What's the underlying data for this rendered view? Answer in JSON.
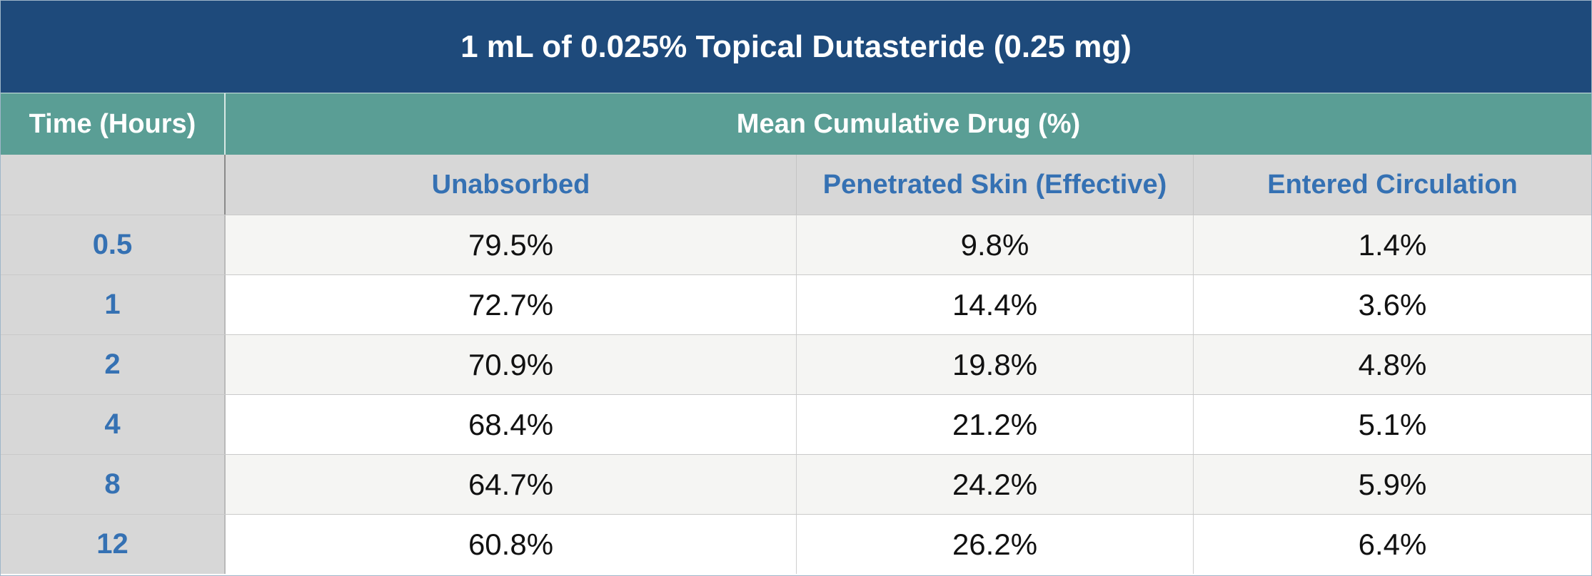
{
  "title": "1 mL of 0.025% Topical Dutasteride (0.25 mg)",
  "headers": {
    "time": "Time (Hours)",
    "group": "Mean Cumulative Drug (%)",
    "columns": [
      "Unabsorbed",
      "Penetrated Skin (Effective)",
      "Entered Circulation"
    ]
  },
  "colors": {
    "title_bg": "#1e4a7b",
    "group_bg": "#5a9e95",
    "subheader_bg": "#d7d7d7",
    "label_text": "#3571b3"
  },
  "rows": [
    {
      "time": "0.5",
      "values": [
        "79.5%",
        "9.8%",
        "1.4%"
      ]
    },
    {
      "time": "1",
      "values": [
        "72.7%",
        "14.4%",
        "3.6%"
      ]
    },
    {
      "time": "2",
      "values": [
        "70.9%",
        "19.8%",
        "4.8%"
      ]
    },
    {
      "time": "4",
      "values": [
        "68.4%",
        "21.2%",
        "5.1%"
      ]
    },
    {
      "time": "8",
      "values": [
        "64.7%",
        "24.2%",
        "5.9%"
      ]
    },
    {
      "time": "12",
      "values": [
        "60.8%",
        "26.2%",
        "6.4%"
      ]
    }
  ]
}
